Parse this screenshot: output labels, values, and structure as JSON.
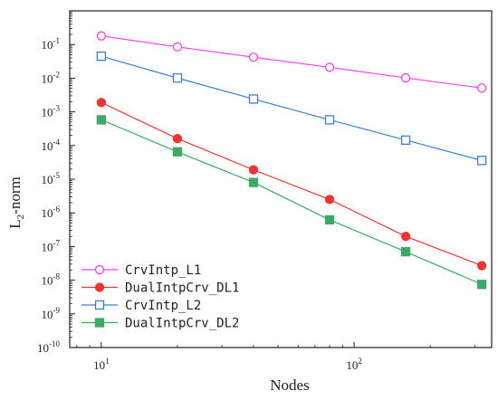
{
  "chart_data": {
    "type": "line",
    "xscale": "log",
    "yscale": "log",
    "xlabel": "Nodes",
    "ylabel_main": "L",
    "ylabel_sub": "2",
    "ylabel_rest": "-norm",
    "xlim": [
      7.5,
      350
    ],
    "ylim": [
      1e-10,
      1
    ],
    "x_ticks": [
      {
        "value": 10,
        "base": "10",
        "exp": "1"
      },
      {
        "value": 100,
        "base": "10",
        "exp": "2"
      }
    ],
    "y_ticks": [
      {
        "value": 1e-10,
        "base": "10",
        "exp": "-10"
      },
      {
        "value": 1e-09,
        "base": "10",
        "exp": "-9"
      },
      {
        "value": 1e-08,
        "base": "10",
        "exp": "-8"
      },
      {
        "value": 1e-07,
        "base": "10",
        "exp": "-7"
      },
      {
        "value": 1e-06,
        "base": "10",
        "exp": "-6"
      },
      {
        "value": 1e-05,
        "base": "10",
        "exp": "-5"
      },
      {
        "value": 0.0001,
        "base": "10",
        "exp": "-4"
      },
      {
        "value": 0.001,
        "base": "10",
        "exp": "-3"
      },
      {
        "value": 0.01,
        "base": "10",
        "exp": "-2"
      },
      {
        "value": 0.1,
        "base": "10",
        "exp": "-1"
      }
    ],
    "grid": false,
    "legend_position": "bottom-left",
    "x": [
      10,
      20,
      40,
      80,
      160,
      320
    ],
    "series": [
      {
        "name": "CrvIntp_L1",
        "color": "#ee44ee",
        "marker": "circle",
        "filled": false,
        "values": [
          0.18,
          0.085,
          0.042,
          0.021,
          0.0102,
          0.0051
        ]
      },
      {
        "name": "DualIntpCrv_DL1",
        "color": "#ee3333",
        "marker": "circle",
        "filled": true,
        "values": [
          0.0019,
          0.00016,
          1.9e-05,
          2.5e-06,
          2e-07,
          2.7e-08
        ]
      },
      {
        "name": "CrvIntp_L2",
        "color": "#3a80d8",
        "marker": "square",
        "filled": false,
        "values": [
          0.045,
          0.0101,
          0.0024,
          0.00058,
          0.000145,
          3.6e-05
        ]
      },
      {
        "name": "DualIntpCrv_DL2",
        "color": "#3aaa66",
        "marker": "square",
        "filled": true,
        "values": [
          0.00058,
          6.5e-05,
          8e-06,
          6.2e-07,
          7e-08,
          7.5e-09
        ]
      }
    ]
  }
}
